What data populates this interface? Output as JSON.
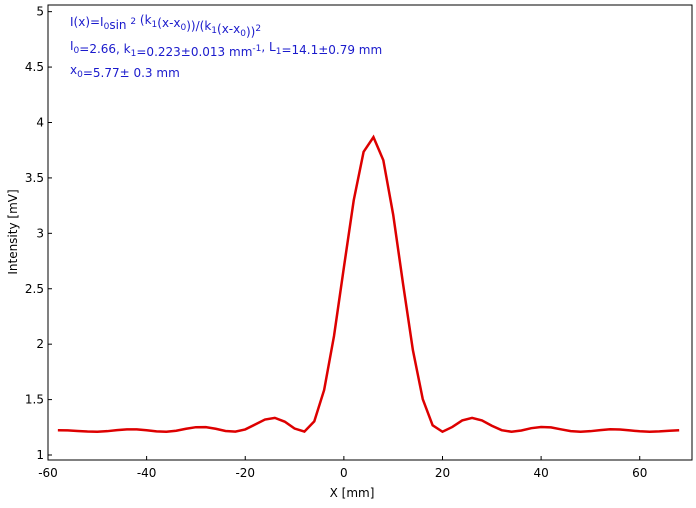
{
  "chart_data": {
    "type": "line",
    "annotations": [
      [
        {
          "text": "I(x)=I"
        },
        {
          "text": "0",
          "sub": true
        },
        {
          "text": "sin "
        },
        {
          "text": "2",
          "sup": true
        },
        {
          "text": " (k"
        },
        {
          "text": "1",
          "sub": true
        },
        {
          "text": "(x-x"
        },
        {
          "text": "0",
          "sub": true
        },
        {
          "text": "))/(k"
        },
        {
          "text": "1",
          "sub": true
        },
        {
          "text": "(x-x"
        },
        {
          "text": "0",
          "sub": true
        },
        {
          "text": "))"
        },
        {
          "text": "2",
          "sup": true
        }
      ],
      [
        {
          "text": "I"
        },
        {
          "text": "0",
          "sub": true
        },
        {
          "text": "=2.66,  k"
        },
        {
          "text": "1",
          "sub": true
        },
        {
          "text": "=0.223±0.013 mm"
        },
        {
          "text": "-1",
          "sup": true
        },
        {
          "text": ",   L"
        },
        {
          "text": "1",
          "sub": true
        },
        {
          "text": "=14.1±0.79 mm"
        }
      ],
      [
        {
          "text": "x"
        },
        {
          "text": "0",
          "sub": true
        },
        {
          "text": "=5.77±  0.3 mm"
        }
      ]
    ],
    "xlabel": "X [mm]",
    "ylabel": "Intensity [mV]",
    "xlim": [
      -60,
      70.6
    ],
    "ylim": [
      0.955,
      5.06
    ],
    "xticks": [
      -60,
      -40,
      -20,
      0,
      20,
      40,
      60
    ],
    "yticks": [
      1,
      1.5,
      2,
      2.5,
      3,
      3.5,
      4,
      4.5,
      5
    ],
    "annotation_color": "#1a1acc",
    "x": [
      -58,
      -56,
      -54,
      -52,
      -50,
      -48,
      -46,
      -44,
      -42,
      -40,
      -38,
      -36,
      -34,
      -32,
      -30,
      -28,
      -26,
      -24,
      -22,
      -20,
      -18,
      -16,
      -14,
      -12,
      -10,
      -8,
      -6,
      -4,
      -2,
      0,
      2,
      4,
      6,
      8,
      10,
      12,
      14,
      16,
      18,
      20,
      22,
      24,
      26,
      28,
      30,
      32,
      34,
      36,
      38,
      40,
      42,
      44,
      46,
      48,
      50,
      52,
      54,
      56,
      58,
      60,
      62,
      64,
      66,
      68
    ],
    "series": [
      {
        "color": "#dd0000",
        "values": [
          1.223,
          1.222,
          1.217,
          1.212,
          1.21,
          1.215,
          1.225,
          1.231,
          1.231,
          1.223,
          1.213,
          1.21,
          1.219,
          1.237,
          1.251,
          1.252,
          1.237,
          1.217,
          1.211,
          1.231,
          1.275,
          1.32,
          1.335,
          1.301,
          1.239,
          1.211,
          1.304,
          1.587,
          2.073,
          2.691,
          3.298,
          3.735,
          3.868,
          3.66,
          3.169,
          2.545,
          1.946,
          1.504,
          1.268,
          1.21,
          1.253,
          1.312,
          1.335,
          1.312,
          1.264,
          1.224,
          1.21,
          1.221,
          1.242,
          1.253,
          1.249,
          1.232,
          1.216,
          1.21,
          1.215,
          1.225,
          1.232,
          1.23,
          1.222,
          1.214,
          1.21,
          1.213,
          1.219,
          1.223
        ]
      }
    ]
  }
}
